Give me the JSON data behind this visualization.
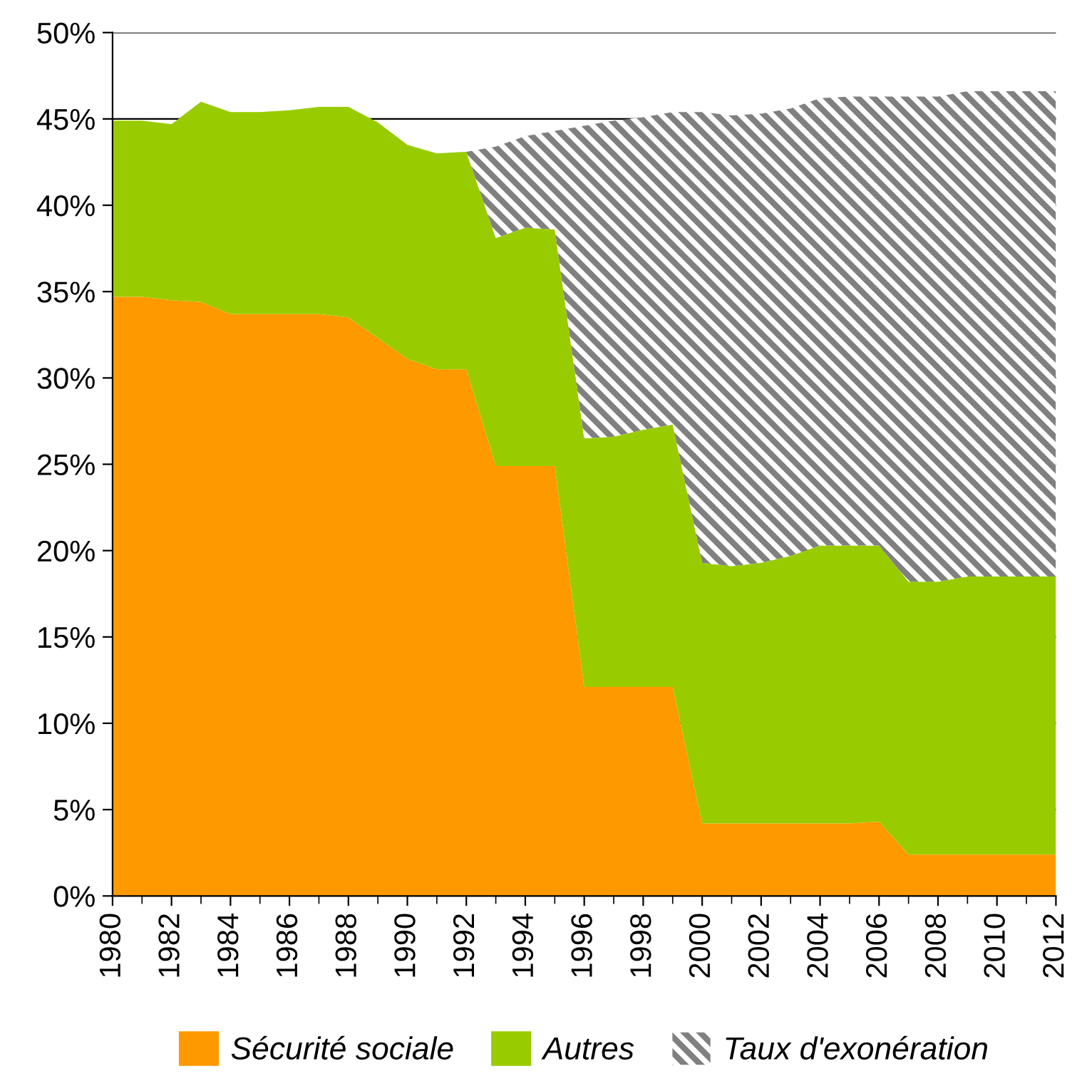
{
  "chart_data": {
    "type": "area",
    "stacked": true,
    "x": [
      1980,
      1981,
      1982,
      1983,
      1984,
      1985,
      1986,
      1987,
      1988,
      1989,
      1990,
      1991,
      1992,
      1993,
      1994,
      1995,
      1996,
      1997,
      1998,
      1999,
      2000,
      2001,
      2002,
      2003,
      2004,
      2005,
      2006,
      2007,
      2008,
      2009,
      2010,
      2011,
      2012
    ],
    "series": [
      {
        "name": "Sécurité sociale",
        "color": "#ff9900",
        "values": [
          34.7,
          34.7,
          34.5,
          34.4,
          33.7,
          33.7,
          33.7,
          33.7,
          33.5,
          32.3,
          31.1,
          30.5,
          30.5,
          24.9,
          24.9,
          24.9,
          12.1,
          12.1,
          12.1,
          12.1,
          4.2,
          4.2,
          4.2,
          4.2,
          4.2,
          4.2,
          4.3,
          2.4,
          2.4,
          2.4,
          2.4,
          2.4,
          2.4
        ]
      },
      {
        "name": "Autres",
        "color": "#99cc00",
        "values": [
          10.2,
          10.2,
          10.2,
          11.6,
          11.7,
          11.7,
          11.8,
          12.0,
          12.2,
          12.5,
          12.4,
          12.5,
          12.6,
          13.2,
          13.8,
          13.7,
          14.4,
          14.5,
          14.9,
          15.2,
          15.1,
          14.9,
          15.1,
          15.5,
          16.1,
          16.1,
          16.0,
          15.8,
          15.8,
          16.1,
          16.1,
          16.1,
          16.1
        ]
      },
      {
        "name": "Taux d'exonération",
        "color": "#808080",
        "values": [
          null,
          null,
          null,
          null,
          null,
          null,
          null,
          null,
          null,
          null,
          null,
          null,
          0,
          5.3,
          5.3,
          5.7,
          18.1,
          18.3,
          18.1,
          18.1,
          26.1,
          26.1,
          26.0,
          25.9,
          25.9,
          26.0,
          26.0,
          28.1,
          28.1,
          28.1,
          28.1,
          28.1,
          28.1
        ]
      }
    ],
    "xlim": [
      1980,
      2012
    ],
    "xticks": [
      1980,
      1982,
      1984,
      1986,
      1988,
      1990,
      1992,
      1994,
      1996,
      1998,
      2000,
      2002,
      2004,
      2006,
      2008,
      2010,
      2012
    ],
    "ylim": [
      0,
      50
    ],
    "yticks": [
      {
        "value": 0,
        "label": "0%"
      },
      {
        "value": 5,
        "label": "5%"
      },
      {
        "value": 10,
        "label": "10%"
      },
      {
        "value": 15,
        "label": "15%"
      },
      {
        "value": 20,
        "label": "20%"
      },
      {
        "value": 25,
        "label": "25%"
      },
      {
        "value": 30,
        "label": "30%"
      },
      {
        "value": 35,
        "label": "35%"
      },
      {
        "value": 40,
        "label": "40%"
      },
      {
        "value": 45,
        "label": "45%"
      },
      {
        "value": 50,
        "label": "50%"
      }
    ],
    "grid": "y",
    "legend": "bottom"
  }
}
